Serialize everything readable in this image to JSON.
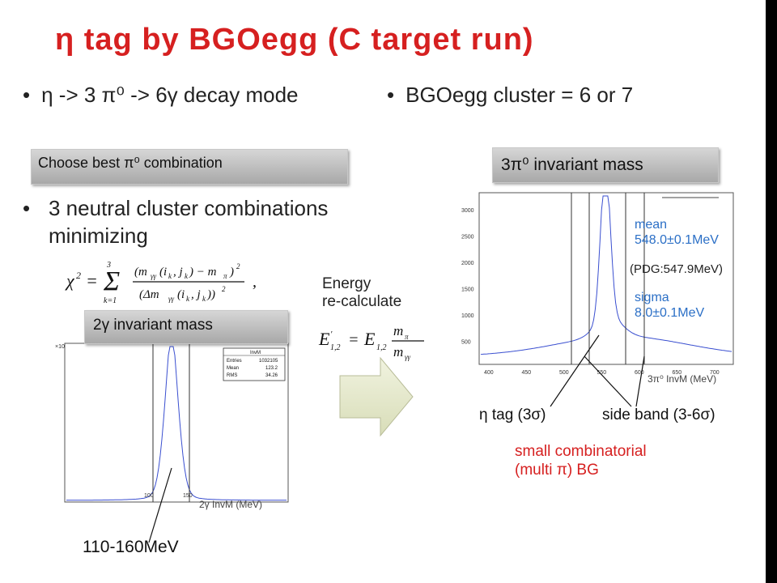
{
  "title": "η tag by BGOegg (C target run)",
  "bullets": {
    "decay_mode": "η -> 3 π⁰ -> 6γ decay mode",
    "cluster": "BGOegg cluster = 6 or 7",
    "neutral": "3 neutral cluster combinations minimizing"
  },
  "bars": {
    "best_combination": "Choose best π⁰ combination",
    "two_gamma": "2γ invariant mass",
    "three_pi0": "3π⁰ invariant mass"
  },
  "energy_recalc": {
    "line1": "Energy",
    "line2": "re-calculate"
  },
  "plot_left": {
    "stats": {
      "title": "InvM",
      "entries_label": "Entries",
      "entries": "1032105",
      "mean_label": "Mean",
      "mean": "123.2",
      "rms_label": "RMS",
      "rms": "34.26"
    },
    "x_label": "2γ InvM (MeV)",
    "y_exp": "×10",
    "cut_label": "110-160MeV",
    "x_ticks": [
      "100",
      "150"
    ]
  },
  "plot_right": {
    "mean_label": "mean",
    "mean_value": "548.0±0.1MeV",
    "pdg": "(PDG:547.9MeV)",
    "sigma_label": "sigma",
    "sigma_value": "8.0±0.1MeV",
    "x_label": "3π⁰ InvM (MeV)",
    "y_ticks": [
      "3000",
      "2500",
      "2000",
      "1500",
      "1000",
      "500"
    ],
    "x_ticks": [
      "400",
      "450",
      "500",
      "550",
      "600",
      "650",
      "700"
    ],
    "eta_tag": "η tag (3σ)",
    "side_band": "side band (3-6σ)",
    "bg_line1": "small combinatorial",
    "bg_line2": "(multi π) BG"
  },
  "colors": {
    "title": "#d62020",
    "fit_text": "#2b6fc6",
    "histogram": "#3a4fd0",
    "arrow_fill": "#e7ead0"
  }
}
